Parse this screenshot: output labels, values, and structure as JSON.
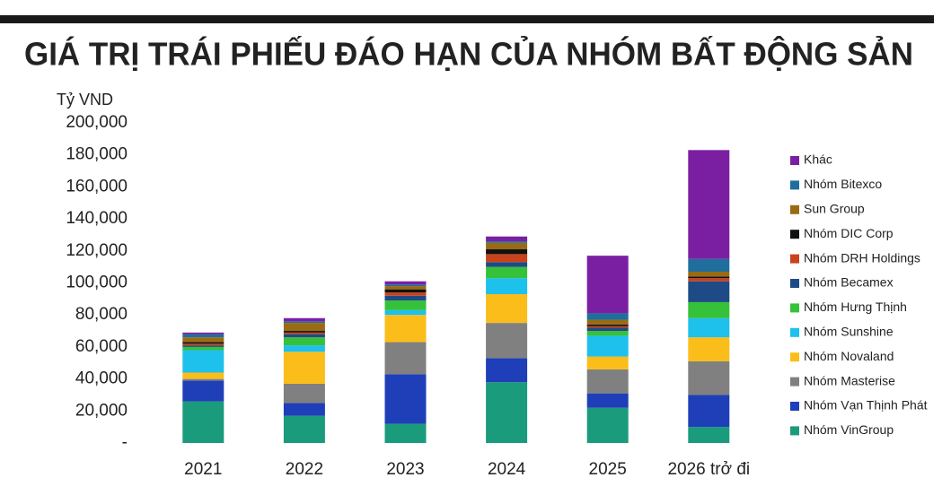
{
  "chart_data": {
    "type": "stacked-bar",
    "title": "GIÁ TRỊ TRÁI PHIẾU ĐÁO HẠN CỦA NHÓM BẤT ĐỘNG SẢN",
    "y_label": "Tỷ VND",
    "categories": [
      "2021",
      "2022",
      "2023",
      "2024",
      "2025",
      "2026 trở đi"
    ],
    "ylim": [
      0,
      200000
    ],
    "yticks": [
      {
        "value": 0,
        "label": "-"
      },
      {
        "value": 20000,
        "label": "20,000"
      },
      {
        "value": 40000,
        "label": "40,000"
      },
      {
        "value": 60000,
        "label": "60,000"
      },
      {
        "value": 80000,
        "label": "80,000"
      },
      {
        "value": 100000,
        "label": "100,000"
      },
      {
        "value": 120000,
        "label": "120,000"
      },
      {
        "value": 140000,
        "label": "140,000"
      },
      {
        "value": 160000,
        "label": "160,000"
      },
      {
        "value": 180000,
        "label": "180,000"
      },
      {
        "value": 200000,
        "label": "200,000"
      }
    ],
    "series": [
      {
        "name": "Nhóm VinGroup",
        "color": "#1a9b7c",
        "values": [
          26000,
          17000,
          12000,
          38000,
          22000,
          10000
        ]
      },
      {
        "name": "Nhóm Vạn Thịnh Phát",
        "color": "#1f3fb8",
        "values": [
          13000,
          8000,
          31000,
          15000,
          9000,
          20000
        ]
      },
      {
        "name": "Nhóm Masterise",
        "color": "#808080",
        "values": [
          1000,
          12000,
          20000,
          22000,
          15000,
          21000
        ]
      },
      {
        "name": "Nhóm Novaland",
        "color": "#fbbd1a",
        "values": [
          4000,
          20000,
          17000,
          18000,
          8000,
          15000
        ]
      },
      {
        "name": "Nhóm Sunshine",
        "color": "#1ec0ec",
        "values": [
          14000,
          4000,
          3000,
          10000,
          13000,
          12000
        ]
      },
      {
        "name": "Nhóm Hưng Thịnh",
        "color": "#35c13a",
        "values": [
          2000,
          5000,
          6000,
          7000,
          3000,
          10000
        ]
      },
      {
        "name": "Nhóm Becamex",
        "color": "#1e4b86",
        "values": [
          1000,
          2000,
          3000,
          3000,
          2000,
          13000
        ]
      },
      {
        "name": "Nhóm DRH Holdings",
        "color": "#c8421b",
        "values": [
          1000,
          1000,
          2000,
          5000,
          1000,
          2000
        ]
      },
      {
        "name": "Nhóm DIC Corp",
        "color": "#111111",
        "values": [
          1000,
          1000,
          2000,
          3000,
          1000,
          1000
        ]
      },
      {
        "name": "Sun Group",
        "color": "#9a6b12",
        "values": [
          3000,
          5000,
          2000,
          4000,
          3000,
          3000
        ]
      },
      {
        "name": "Nhóm Bitexco",
        "color": "#1f6e9e",
        "values": [
          2000,
          1000,
          1000,
          1000,
          4000,
          8000
        ]
      },
      {
        "name": "Khác",
        "color": "#7b1fa2",
        "values": [
          1000,
          2000,
          2000,
          3000,
          36000,
          68000
        ]
      }
    ]
  }
}
